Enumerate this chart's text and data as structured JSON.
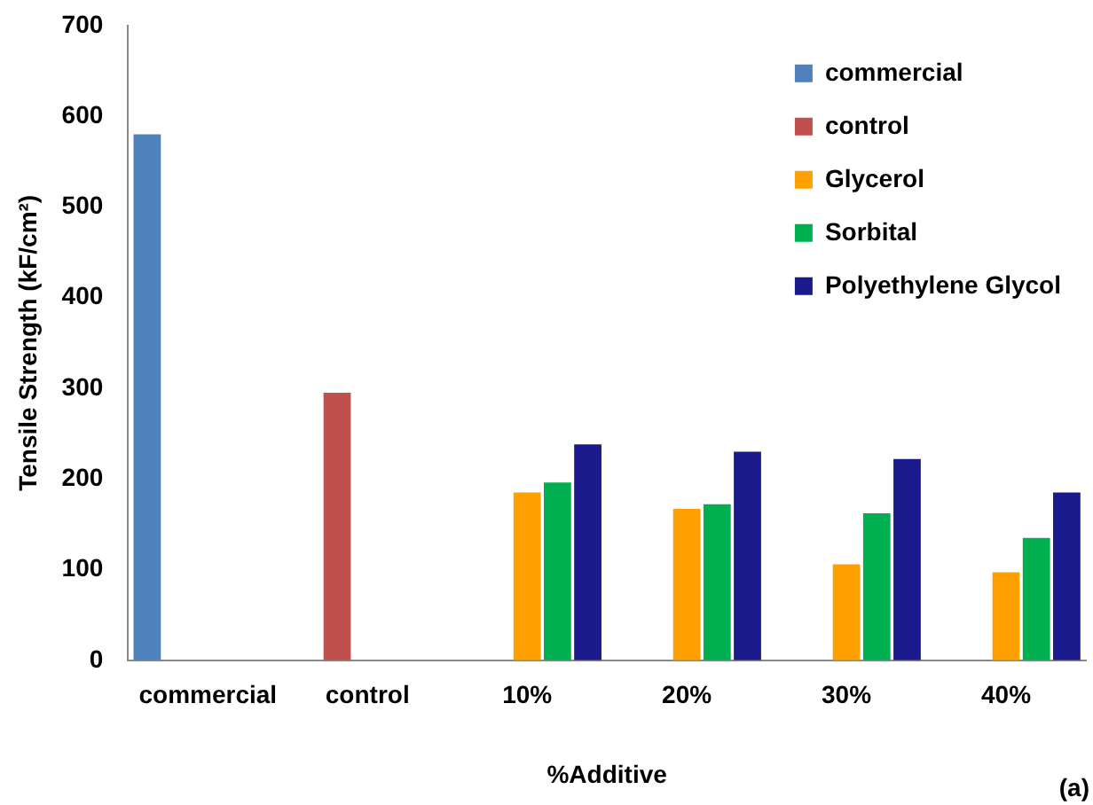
{
  "chart_data": {
    "type": "bar",
    "xlabel": "%Additive",
    "ylabel": "Tensile Strength (kF/cm²)",
    "categories": [
      "commercial",
      "control",
      "10%",
      "20%",
      "30%",
      "40%"
    ],
    "series": [
      {
        "name": "commercial",
        "color": "#4f81bd",
        "values": [
          580,
          null,
          null,
          null,
          null,
          null
        ]
      },
      {
        "name": "control",
        "color": "#c0504d",
        "values": [
          null,
          295,
          null,
          null,
          null,
          null
        ]
      },
      {
        "name": "Glycerol",
        "color": "#ffa000",
        "values": [
          null,
          null,
          185,
          167,
          106,
          97
        ]
      },
      {
        "name": "Sorbital",
        "color": "#00b050",
        "values": [
          null,
          null,
          196,
          172,
          162,
          135
        ]
      },
      {
        "name": "Polyethylene Glycol",
        "color": "#1a1a8c",
        "values": [
          null,
          null,
          238,
          230,
          222,
          185
        ]
      }
    ],
    "ylim": [
      0,
      700
    ],
    "yticks": [
      0,
      100,
      200,
      300,
      400,
      500,
      600,
      700
    ],
    "grid": false,
    "legend": "top right",
    "annotations": [
      "(a)"
    ]
  }
}
